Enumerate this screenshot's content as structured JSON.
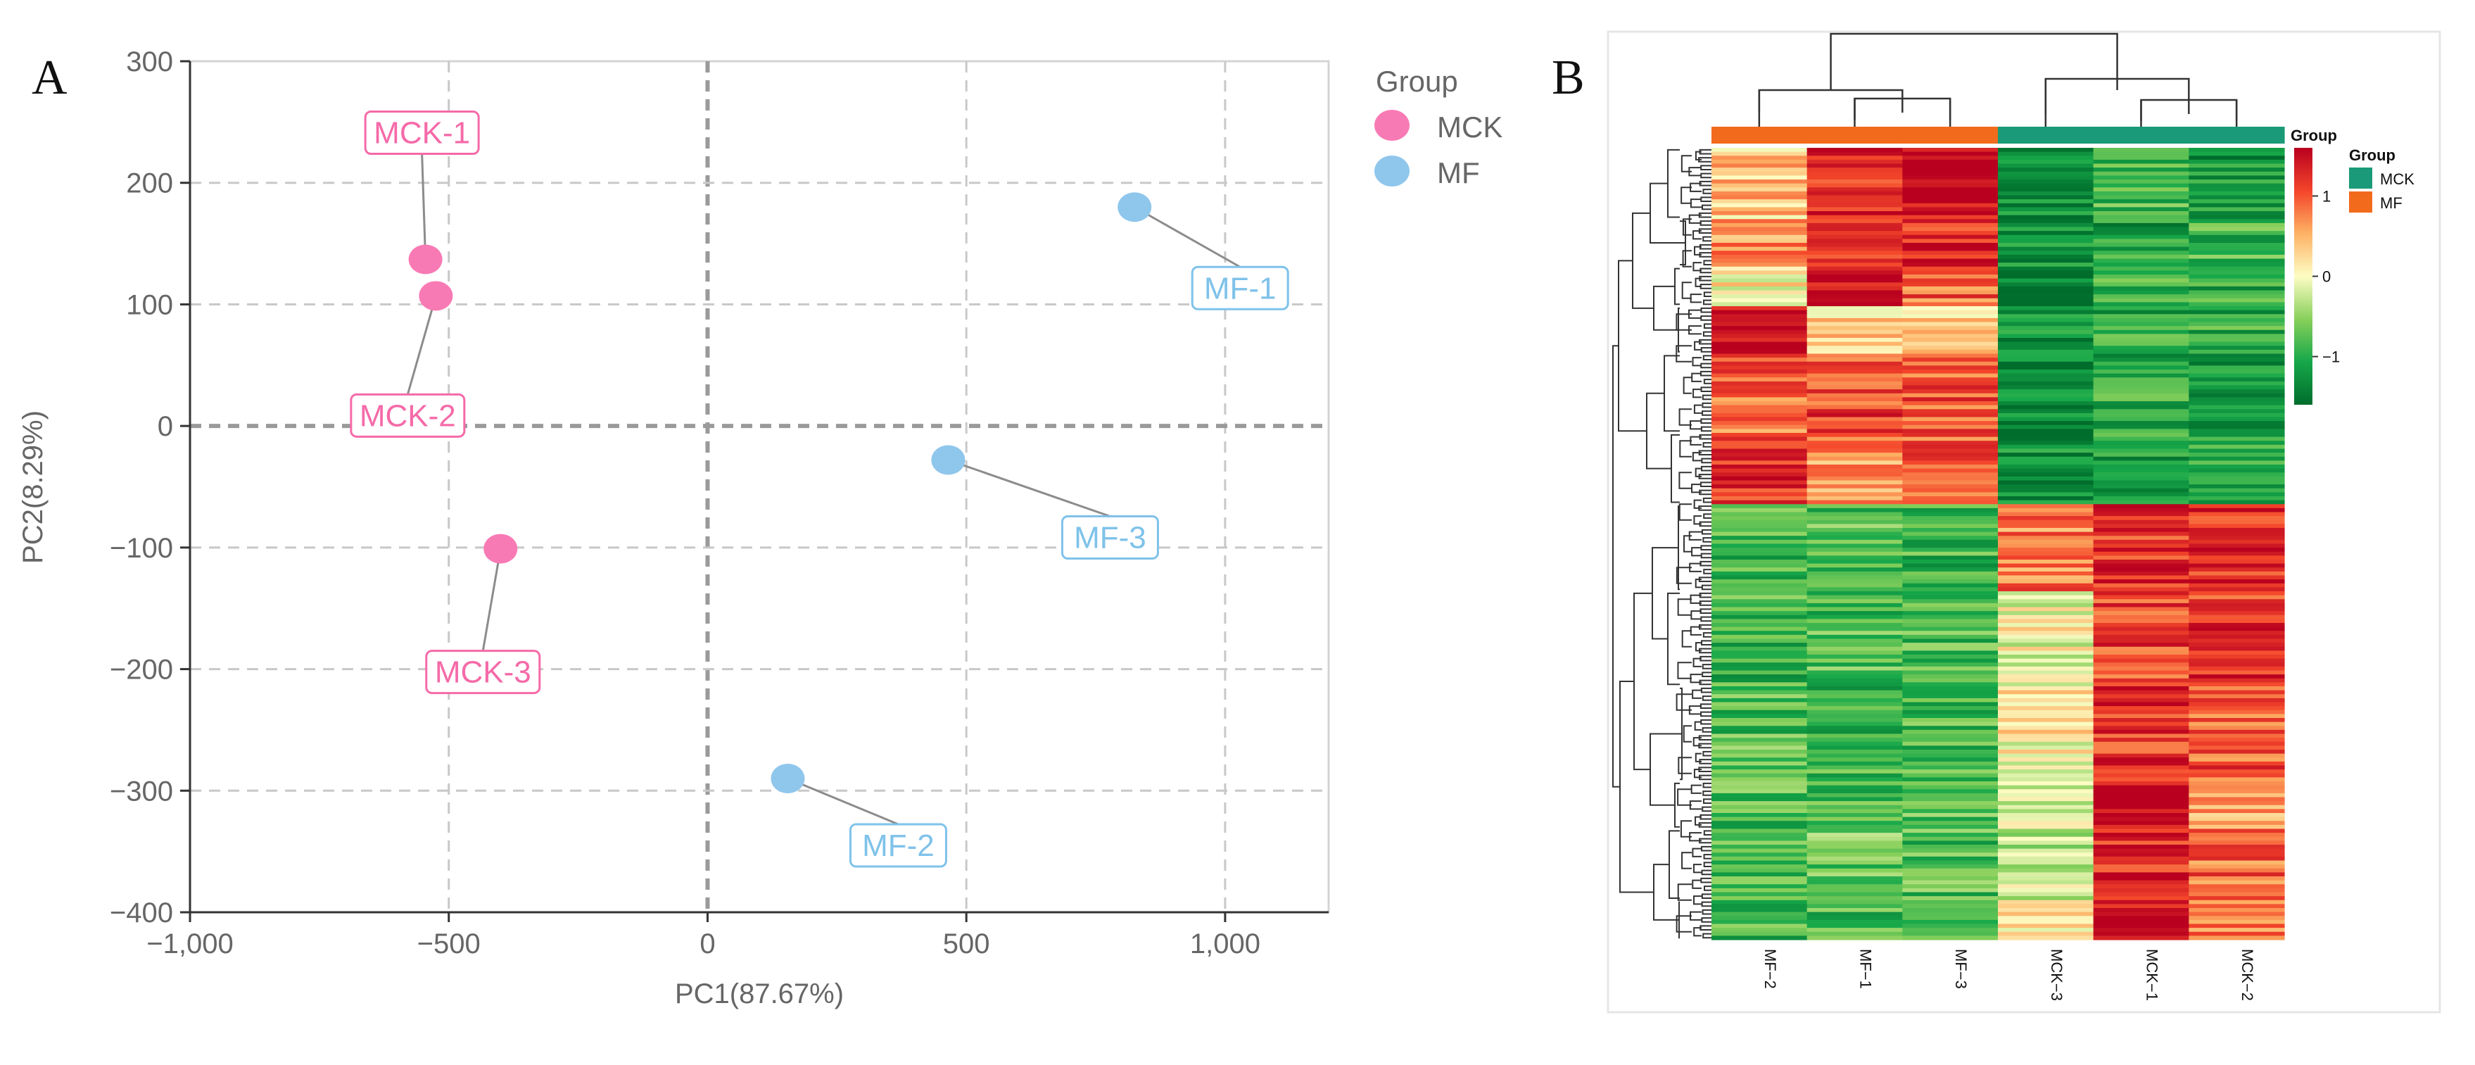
{
  "chart_data": [
    {
      "type": "scatter",
      "panel_label": "A",
      "title": "",
      "xlabel": "PC1(87.67%)",
      "ylabel": "PC2(8.29%)",
      "xlim": [
        -1000,
        1200
      ],
      "ylim": [
        -400,
        300
      ],
      "xticks": [
        -1000,
        -500,
        0,
        500,
        1000
      ],
      "xtick_labels": [
        "−1,000",
        "−500",
        "0",
        "500",
        "1,000"
      ],
      "yticks": [
        300,
        200,
        100,
        0,
        -100,
        -200,
        -300,
        -400
      ],
      "ytick_labels": [
        "300",
        "200",
        "100",
        "0",
        "−100",
        "−200",
        "−300",
        "−400"
      ],
      "grid": true,
      "legend": {
        "title": "Group",
        "position": "top-right-outside",
        "entries": [
          "MCK",
          "MF"
        ]
      },
      "colors": {
        "MCK": "#f87ab5",
        "MF": "#8fc6ec",
        "MCK_label": "#f56aa8",
        "MF_label": "#7fc2ea"
      },
      "series": [
        {
          "name": "MCK",
          "points": [
            {
              "label": "MCK-1",
              "x": -545,
              "y": 137
            },
            {
              "label": "MCK-2",
              "x": -525,
              "y": 107
            },
            {
              "label": "MCK-3",
              "x": -400,
              "y": -101
            }
          ]
        },
        {
          "name": "MF",
          "points": [
            {
              "label": "MF-1",
              "x": 825,
              "y": 180
            },
            {
              "label": "MF-3",
              "x": 465,
              "y": -28
            },
            {
              "label": "MF-2",
              "x": 155,
              "y": -290
            }
          ]
        }
      ]
    },
    {
      "type": "heatmap",
      "panel_label": "B",
      "columns": [
        "MF−2",
        "MF−1",
        "MF−3",
        "MCK−3",
        "MCK−1",
        "MCK−2"
      ],
      "column_groups": [
        "MF",
        "MF",
        "MF",
        "MCK",
        "MCK",
        "MCK"
      ],
      "group_legend": {
        "title": "Group",
        "entries": [
          "MCK",
          "MF"
        ]
      },
      "group_colors": {
        "MCK": "#1a9a78",
        "MF": "#f26b1d"
      },
      "colorbar": {
        "title": "Group",
        "min": -1.6,
        "max": 1.6,
        "ticks": [
          1,
          0,
          -1
        ],
        "tick_labels": [
          "1",
          "0",
          "−1"
        ]
      },
      "colorscale": [
        "#006d2c",
        "#17a84a",
        "#86cf5a",
        "#fdfdc4",
        "#fdb063",
        "#f4462b",
        "#b9001f"
      ],
      "row_blocks": [
        {
          "rows": 18,
          "values": [
            0.4,
            1.3,
            1.5,
            -1.3,
            -0.9,
            -1.2
          ]
        },
        {
          "rows": 12,
          "values": [
            0.7,
            1.0,
            1.3,
            -1.3,
            -1.1,
            -0.9
          ]
        },
        {
          "rows": 10,
          "values": [
            0.1,
            1.6,
            0.9,
            -1.5,
            -0.9,
            -1.0
          ]
        },
        {
          "rows": 12,
          "values": [
            1.5,
            0.3,
            0.2,
            -1.3,
            -1.0,
            -1.0
          ]
        },
        {
          "rows": 20,
          "values": [
            0.9,
            1.1,
            1.0,
            -1.4,
            -1.0,
            -1.1
          ]
        },
        {
          "rows": 18,
          "values": [
            1.2,
            0.7,
            1.0,
            -1.3,
            -1.1,
            -1.0
          ]
        },
        {
          "rows": 22,
          "values": [
            -0.9,
            -0.8,
            -0.9,
            0.8,
            1.2,
            1.3
          ]
        },
        {
          "rows": 24,
          "values": [
            -0.9,
            -0.8,
            -0.8,
            0.0,
            1.1,
            1.2
          ]
        },
        {
          "rows": 24,
          "values": [
            -0.8,
            -0.9,
            -0.8,
            0.1,
            1.2,
            1.0
          ]
        },
        {
          "rows": 12,
          "values": [
            -0.8,
            -0.8,
            -0.7,
            -0.3,
            1.6,
            0.6
          ]
        },
        {
          "rows": 18,
          "values": [
            -0.8,
            -0.7,
            -0.8,
            -0.2,
            1.3,
            0.9
          ]
        },
        {
          "rows": 10,
          "values": [
            -0.9,
            -0.8,
            -0.7,
            0.1,
            1.5,
            0.7
          ]
        }
      ]
    }
  ]
}
